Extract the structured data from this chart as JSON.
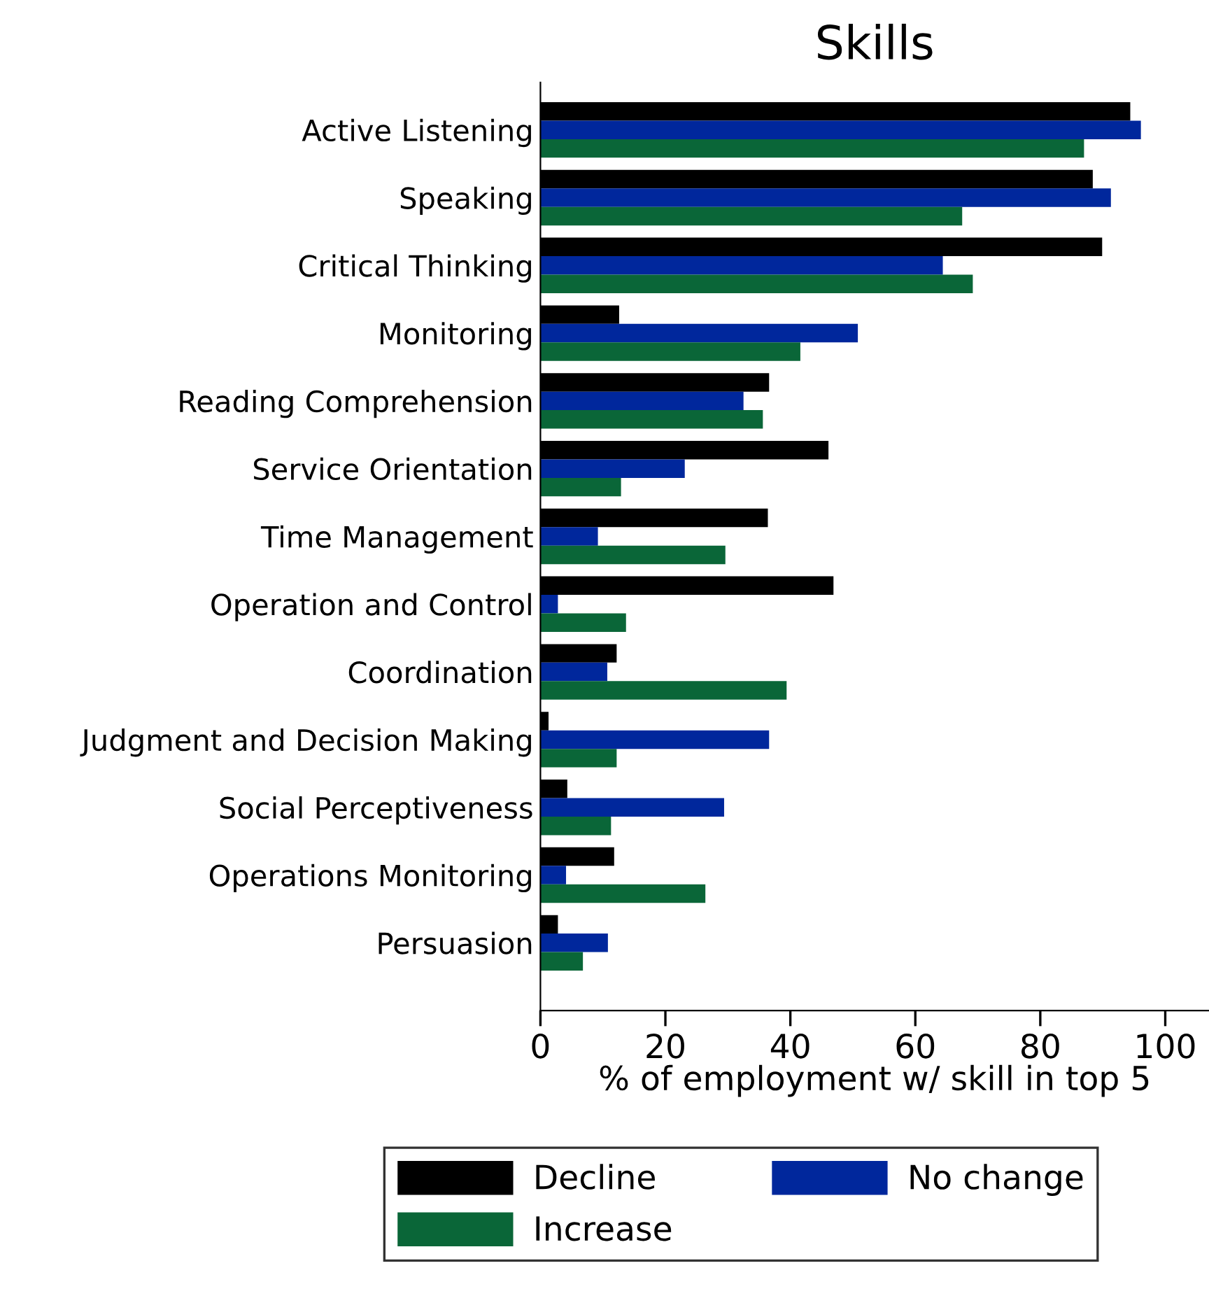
{
  "chart_data": {
    "type": "bar",
    "orientation": "horizontal",
    "title": "Skills",
    "xlabel": "% of employment w/ skill in top 5",
    "categories": [
      "Active Listening",
      "Speaking",
      "Critical Thinking",
      "Monitoring",
      "Reading Comprehension",
      "Service Orientation",
      "Time Management",
      "Operation and Control",
      "Coordination",
      "Judgment and Decision Making",
      "Social Perceptiveness",
      "Operations Monitoring",
      "Persuasion"
    ],
    "series": [
      {
        "name": "Decline",
        "color": "#000000",
        "values": [
          94.4,
          88.4,
          89.9,
          12.6,
          36.6,
          46.1,
          36.4,
          46.9,
          12.2,
          1.3,
          4.3,
          11.8,
          2.8
        ]
      },
      {
        "name": "No change",
        "color": "#00279c",
        "values": [
          96.1,
          91.3,
          64.4,
          50.8,
          32.5,
          23.1,
          9.2,
          2.8,
          10.7,
          36.6,
          29.4,
          4.1,
          10.8
        ]
      },
      {
        "name": "Increase",
        "color": "#0a6638",
        "values": [
          87.0,
          67.5,
          69.2,
          41.6,
          35.6,
          12.9,
          29.6,
          13.7,
          39.4,
          12.2,
          11.3,
          26.4,
          6.8
        ]
      }
    ],
    "xlim": [
      0,
      107
    ],
    "xticks": [
      0,
      20,
      40,
      60,
      80,
      100
    ],
    "grid": false,
    "legend": "bottom"
  }
}
